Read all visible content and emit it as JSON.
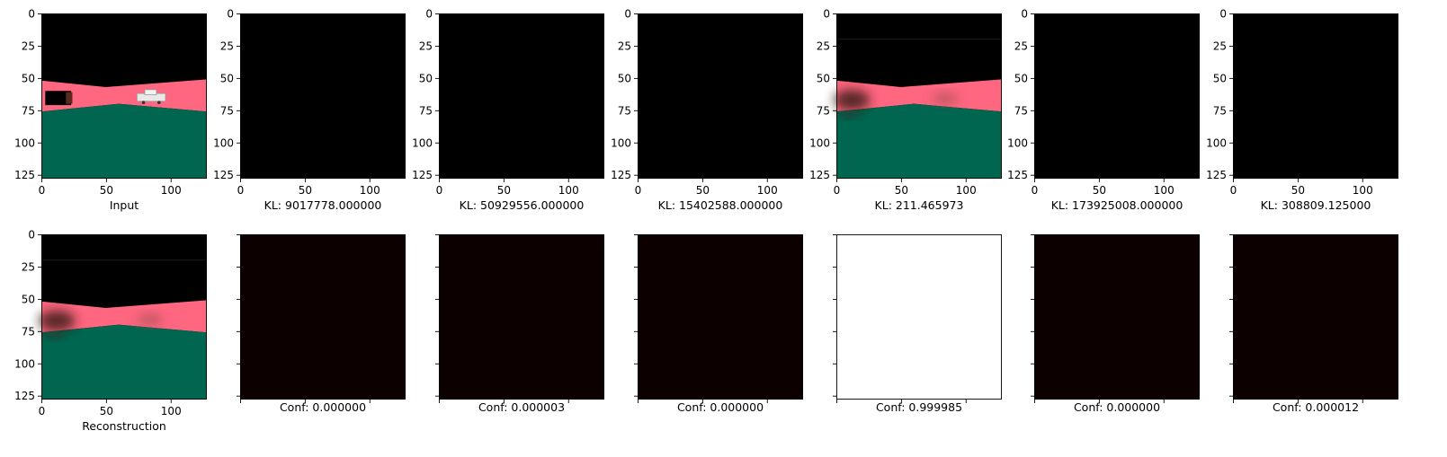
{
  "colors": {
    "sky": "#000000",
    "road": "#ff6680",
    "ground": "#00664f",
    "dark_map": "#0d0000",
    "bright_map": "#ffffff"
  },
  "chart_data": [
    {
      "type": "heatmap",
      "row": "top",
      "panel": 0,
      "image": "input-scene",
      "caption": "Input",
      "x_ticks": [
        "0",
        "50",
        "100"
      ],
      "y_ticks": [
        "0",
        "25",
        "50",
        "75",
        "100",
        "125"
      ],
      "xlim": [
        0,
        128
      ],
      "ylim": [
        128,
        0
      ]
    },
    {
      "type": "heatmap",
      "row": "top",
      "panel": 1,
      "image": "black",
      "caption": "KL: 9017778.000000",
      "x_ticks": [
        "0",
        "50",
        "100"
      ],
      "y_ticks": [
        "0",
        "25",
        "50",
        "75",
        "100",
        "125"
      ]
    },
    {
      "type": "heatmap",
      "row": "top",
      "panel": 2,
      "image": "black",
      "caption": "KL: 50929556.000000",
      "x_ticks": [
        "0",
        "50",
        "100"
      ],
      "y_ticks": [
        "0",
        "25",
        "50",
        "75",
        "100",
        "125"
      ]
    },
    {
      "type": "heatmap",
      "row": "top",
      "panel": 3,
      "image": "black",
      "caption": "KL: 15402588.000000",
      "x_ticks": [
        "0",
        "50",
        "100"
      ],
      "y_ticks": [
        "0",
        "25",
        "50",
        "75",
        "100",
        "125"
      ]
    },
    {
      "type": "heatmap",
      "row": "top",
      "panel": 4,
      "image": "reconstructed-scene",
      "caption": "KL: 211.465973",
      "x_ticks": [
        "0",
        "50",
        "100"
      ],
      "y_ticks": [
        "0",
        "25",
        "50",
        "75",
        "100",
        "125"
      ]
    },
    {
      "type": "heatmap",
      "row": "top",
      "panel": 5,
      "image": "black",
      "caption": "KL: 173925008.000000",
      "x_ticks": [
        "0",
        "50",
        "100"
      ],
      "y_ticks": [
        "0",
        "25",
        "50",
        "75",
        "100",
        "125"
      ]
    },
    {
      "type": "heatmap",
      "row": "top",
      "panel": 6,
      "image": "black",
      "caption": "KL: 308809.125000",
      "x_ticks": [
        "0",
        "50",
        "100"
      ],
      "y_ticks": [
        "0",
        "25",
        "50",
        "75",
        "100",
        "125"
      ]
    },
    {
      "type": "heatmap",
      "row": "bottom",
      "panel": 0,
      "image": "reconstructed-scene",
      "caption": "Reconstruction",
      "x_ticks": [
        "0",
        "50",
        "100"
      ],
      "y_ticks": [
        "0",
        "25",
        "50",
        "75",
        "100",
        "125"
      ]
    },
    {
      "type": "heatmap",
      "row": "bottom",
      "panel": 1,
      "image": "dark_map",
      "caption": "Conf: 0.000000",
      "value": 0.0
    },
    {
      "type": "heatmap",
      "row": "bottom",
      "panel": 2,
      "image": "dark_map",
      "caption": "Conf: 0.000003",
      "value": 3e-06
    },
    {
      "type": "heatmap",
      "row": "bottom",
      "panel": 3,
      "image": "dark_map",
      "caption": "Conf: 0.000000",
      "value": 0.0
    },
    {
      "type": "heatmap",
      "row": "bottom",
      "panel": 4,
      "image": "bright_map",
      "caption": "Conf: 0.999985",
      "value": 0.999985
    },
    {
      "type": "heatmap",
      "row": "bottom",
      "panel": 5,
      "image": "dark_map",
      "caption": "Conf: 0.000000",
      "value": 0.0
    },
    {
      "type": "heatmap",
      "row": "bottom",
      "panel": 6,
      "image": "dark_map",
      "caption": "Conf: 0.000012",
      "value": 1.2e-05
    }
  ]
}
